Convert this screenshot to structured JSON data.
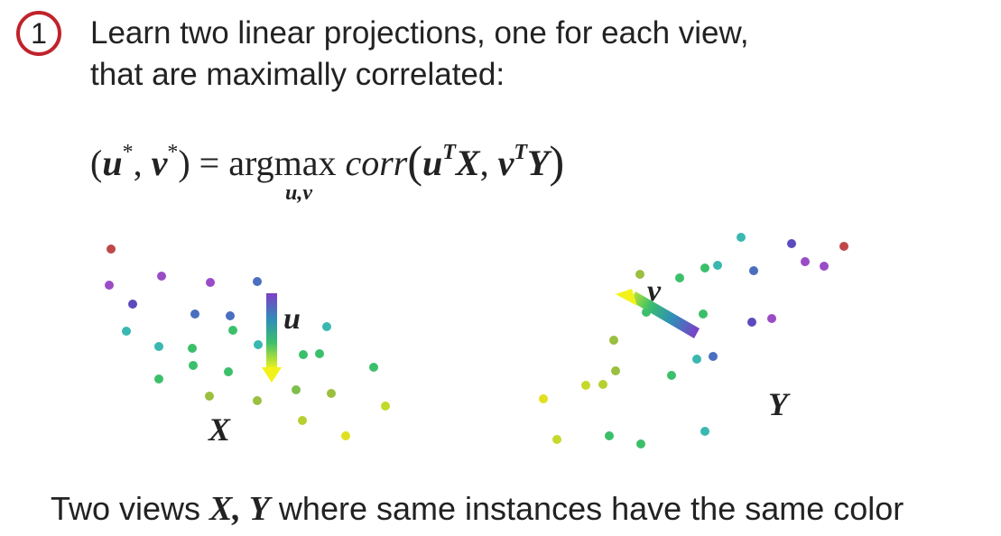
{
  "step": {
    "number": "1"
  },
  "heading": {
    "line1": "Learn two linear projections, one for each view,",
    "line2": "that are maximally correlated:"
  },
  "equation": {
    "lhs_open": "(",
    "u_star": "u",
    "star1": "*",
    "comma1": ", ",
    "v_star": "v",
    "star2": "*",
    "lhs_close": ")",
    "equals": " = ",
    "op": "argmax",
    "corr": "corr",
    "paren_open": "(",
    "u": "u",
    "T1": "T",
    "X": "X",
    "comma2": ", ",
    "v": "v",
    "T2": "T",
    "Y": "Y",
    "paren_close": ")",
    "subscript": "u,v"
  },
  "views": {
    "x_label": "X",
    "y_label": "Y",
    "u_label": "u",
    "v_label": "v"
  },
  "caption": {
    "prefix": "Two views ",
    "vars": "X, Y",
    "suffix": " where same instances have the same color"
  },
  "colors": {
    "badge": "#c0232b",
    "purple": "#9a4cc6",
    "indigo": "#5b4bbf",
    "blue": "#4a6fbf",
    "teal": "#3ab7b0",
    "green": "#3cbf6b",
    "lime": "#9bbf3f",
    "yellow": "#e0e020",
    "red": "#c0484a"
  }
}
